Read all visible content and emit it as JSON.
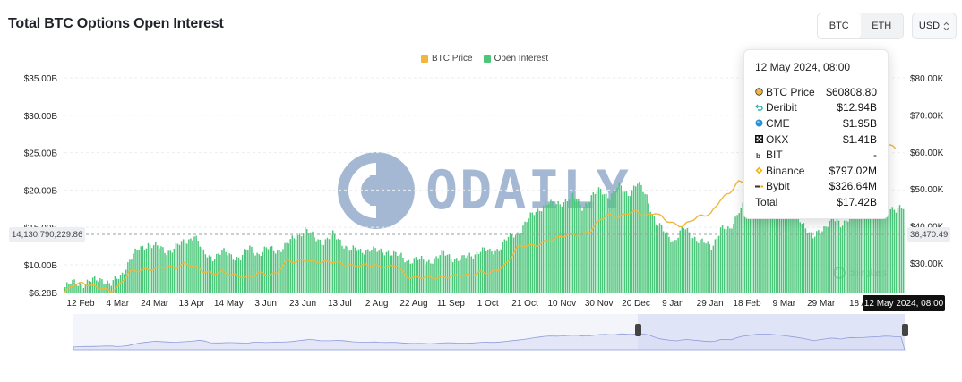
{
  "title": "Total BTC Options Open Interest",
  "asset_tabs": [
    {
      "label": "BTC",
      "active": true
    },
    {
      "label": "ETH",
      "active": false
    }
  ],
  "currency_select": {
    "value": "USD"
  },
  "legend": [
    {
      "label": "BTC Price",
      "color": "#f0b73a"
    },
    {
      "label": "Open Interest",
      "color": "#4cc67a"
    }
  ],
  "y_left_ticks": [
    "$35.00B",
    "$30.00B",
    "$25.00B",
    "$20.00B",
    "$15.00B",
    "$10.00B",
    "$6.28B"
  ],
  "y_right_ticks": [
    "$80.00K",
    "$70.00K",
    "$60.00K",
    "$50.00K",
    "$40.00K",
    "$30.00K"
  ],
  "x_ticks": [
    "12 Feb",
    "4 Mar",
    "24 Mar",
    "13 Apr",
    "14 May",
    "3 Jun",
    "23 Jun",
    "13 Jul",
    "2 Aug",
    "22 Aug",
    "11 Sep",
    "1 Oct",
    "21 Oct",
    "10 Nov",
    "30 Nov",
    "20 Dec",
    "9 Jan",
    "29 Jan",
    "18 Feb",
    "9 Mar",
    "29 Mar",
    "18 A"
  ],
  "crosshair": {
    "left_value": "14,130,790,229.86",
    "right_value": "36,470.49",
    "x_label": "12 May 2024, 08:00"
  },
  "tooltip": {
    "title": "12 May 2024, 08:00",
    "rows": [
      {
        "label": "BTC Price",
        "value": "$60808.80",
        "icon": "btc-price-dot-icon",
        "color": "#f0b73a"
      },
      {
        "label": "Deribit",
        "value": "$12.94B",
        "icon": "deribit-icon",
        "color": "#28b5b5"
      },
      {
        "label": "CME",
        "value": "$1.95B",
        "icon": "cme-icon",
        "color": "#2a8fd6"
      },
      {
        "label": "OKX",
        "value": "$1.41B",
        "icon": "okx-icon",
        "color": "#111111"
      },
      {
        "label": "BIT",
        "value": "-",
        "icon": "bit-icon",
        "color": "#333333"
      },
      {
        "label": "Binance",
        "value": "$797.02M",
        "icon": "binance-icon",
        "color": "#f0b90b"
      },
      {
        "label": "Bybit",
        "value": "$326.64M",
        "icon": "bybit-icon",
        "color": "#f7a600"
      },
      {
        "label": "Total",
        "value": "$17.42B",
        "icon": "",
        "color": ""
      }
    ]
  },
  "watermark": "ODAILY",
  "attribution": "coinglass",
  "chart_data": {
    "type": "bar",
    "x_range": [
      "12 Feb 2023",
      "12 May 2024"
    ],
    "ylim_left": [
      6.28,
      35.0
    ],
    "ylim_right": [
      22.0,
      80.0
    ],
    "series": [
      {
        "name": "Open Interest",
        "axis": "left",
        "unit": "B USD",
        "points": [
          [
            0,
            7.0
          ],
          [
            5,
            7.6
          ],
          [
            10,
            7.5
          ],
          [
            15,
            7.8
          ],
          [
            20,
            8.2
          ],
          [
            25,
            7.3
          ],
          [
            30,
            8.5
          ],
          [
            35,
            10.7
          ],
          [
            40,
            12.0
          ],
          [
            45,
            12.9
          ],
          [
            50,
            12.3
          ],
          [
            55,
            11.8
          ],
          [
            60,
            12.4
          ],
          [
            65,
            13.0
          ],
          [
            70,
            14.1
          ],
          [
            75,
            11.4
          ],
          [
            80,
            11.1
          ],
          [
            85,
            11.6
          ],
          [
            90,
            11.3
          ],
          [
            95,
            10.9
          ],
          [
            100,
            12.3
          ],
          [
            105,
            11.5
          ],
          [
            110,
            12.1
          ],
          [
            115,
            12.0
          ],
          [
            120,
            12.6
          ],
          [
            125,
            13.8
          ],
          [
            130,
            14.8
          ],
          [
            135,
            13.5
          ],
          [
            140,
            13.2
          ],
          [
            145,
            13.9
          ],
          [
            150,
            13.0
          ],
          [
            155,
            12.0
          ],
          [
            160,
            11.8
          ],
          [
            165,
            12.2
          ],
          [
            170,
            11.6
          ],
          [
            175,
            11.9
          ],
          [
            180,
            11.2
          ],
          [
            185,
            10.6
          ],
          [
            190,
            10.8
          ],
          [
            195,
            10.3
          ],
          [
            200,
            10.9
          ],
          [
            205,
            11.4
          ],
          [
            210,
            11.0
          ],
          [
            215,
            10.7
          ],
          [
            220,
            11.3
          ],
          [
            225,
            12.0
          ],
          [
            230,
            11.6
          ],
          [
            235,
            12.3
          ],
          [
            240,
            13.5
          ],
          [
            245,
            14.3
          ],
          [
            250,
            15.8
          ],
          [
            255,
            17.1
          ],
          [
            260,
            18.3
          ],
          [
            265,
            17.9
          ],
          [
            270,
            18.6
          ],
          [
            275,
            19.1
          ],
          [
            280,
            17.8
          ],
          [
            285,
            19.0
          ],
          [
            290,
            20.0
          ],
          [
            295,
            19.2
          ],
          [
            300,
            20.4
          ],
          [
            305,
            19.6
          ],
          [
            310,
            20.8
          ],
          [
            315,
            19.2
          ],
          [
            320,
            15.6
          ],
          [
            325,
            14.2
          ],
          [
            330,
            13.3
          ],
          [
            335,
            14.8
          ],
          [
            340,
            13.9
          ],
          [
            345,
            13.0
          ],
          [
            350,
            12.3
          ],
          [
            355,
            15.0
          ],
          [
            360,
            14.4
          ],
          [
            365,
            17.6
          ],
          [
            370,
            18.8
          ],
          [
            375,
            20.2
          ],
          [
            380,
            20.1
          ],
          [
            385,
            19.4
          ],
          [
            390,
            18.3
          ],
          [
            395,
            17.0
          ],
          [
            400,
            15.6
          ],
          [
            405,
            13.4
          ],
          [
            410,
            14.8
          ],
          [
            415,
            16.3
          ],
          [
            420,
            15.1
          ],
          [
            425,
            16.8
          ],
          [
            430,
            16.2
          ],
          [
            435,
            17.0
          ],
          [
            440,
            17.3
          ],
          [
            445,
            18.2
          ],
          [
            450,
            17.4
          ]
        ]
      },
      {
        "name": "BTC Price",
        "axis": "right",
        "unit": "K USD",
        "points": [
          [
            0,
            22.0
          ],
          [
            5,
            24.2
          ],
          [
            10,
            24.5
          ],
          [
            15,
            23.8
          ],
          [
            20,
            23.2
          ],
          [
            25,
            22.3
          ],
          [
            30,
            24.0
          ],
          [
            35,
            27.6
          ],
          [
            40,
            28.0
          ],
          [
            45,
            28.2
          ],
          [
            50,
            28.5
          ],
          [
            55,
            29.0
          ],
          [
            60,
            28.6
          ],
          [
            65,
            29.8
          ],
          [
            70,
            29.3
          ],
          [
            75,
            27.8
          ],
          [
            80,
            27.1
          ],
          [
            85,
            27.6
          ],
          [
            90,
            26.9
          ],
          [
            95,
            26.4
          ],
          [
            100,
            26.0
          ],
          [
            105,
            27.4
          ],
          [
            110,
            26.8
          ],
          [
            115,
            27.1
          ],
          [
            120,
            30.6
          ],
          [
            125,
            30.3
          ],
          [
            130,
            30.8
          ],
          [
            135,
            30.3
          ],
          [
            140,
            30.2
          ],
          [
            145,
            30.4
          ],
          [
            150,
            29.8
          ],
          [
            155,
            29.2
          ],
          [
            160,
            29.3
          ],
          [
            165,
            29.5
          ],
          [
            170,
            29.1
          ],
          [
            175,
            28.9
          ],
          [
            180,
            29.4
          ],
          [
            185,
            26.3
          ],
          [
            190,
            26.0
          ],
          [
            195,
            26.2
          ],
          [
            200,
            25.9
          ],
          [
            205,
            26.1
          ],
          [
            210,
            26.4
          ],
          [
            215,
            26.7
          ],
          [
            220,
            26.6
          ],
          [
            225,
            27.5
          ],
          [
            230,
            27.4
          ],
          [
            235,
            28.2
          ],
          [
            240,
            30.0
          ],
          [
            245,
            34.2
          ],
          [
            250,
            34.8
          ],
          [
            255,
            34.6
          ],
          [
            260,
            35.7
          ],
          [
            265,
            36.4
          ],
          [
            270,
            37.3
          ],
          [
            275,
            37.8
          ],
          [
            280,
            37.5
          ],
          [
            285,
            38.7
          ],
          [
            290,
            41.8
          ],
          [
            295,
            43.0
          ],
          [
            300,
            42.3
          ],
          [
            305,
            43.5
          ],
          [
            310,
            43.9
          ],
          [
            315,
            42.7
          ],
          [
            320,
            43.6
          ],
          [
            325,
            41.8
          ],
          [
            330,
            40.5
          ],
          [
            335,
            39.9
          ],
          [
            340,
            41.7
          ],
          [
            345,
            42.8
          ],
          [
            350,
            43.2
          ],
          [
            355,
            47.0
          ],
          [
            360,
            48.9
          ],
          [
            365,
            51.9
          ],
          [
            370,
            52.1
          ],
          [
            375,
            51.6
          ],
          [
            380,
            57.0
          ],
          [
            385,
            61.3
          ],
          [
            390,
            63.0
          ],
          [
            395,
            66.6
          ],
          [
            400,
            68.3
          ],
          [
            405,
            71.4
          ],
          [
            410,
            67.0
          ],
          [
            415,
            70.4
          ],
          [
            420,
            69.8
          ],
          [
            425,
            66.7
          ],
          [
            430,
            63.6
          ],
          [
            435,
            63.8
          ],
          [
            440,
            64.1
          ],
          [
            445,
            62.5
          ],
          [
            450,
            60.8
          ]
        ]
      }
    ]
  }
}
